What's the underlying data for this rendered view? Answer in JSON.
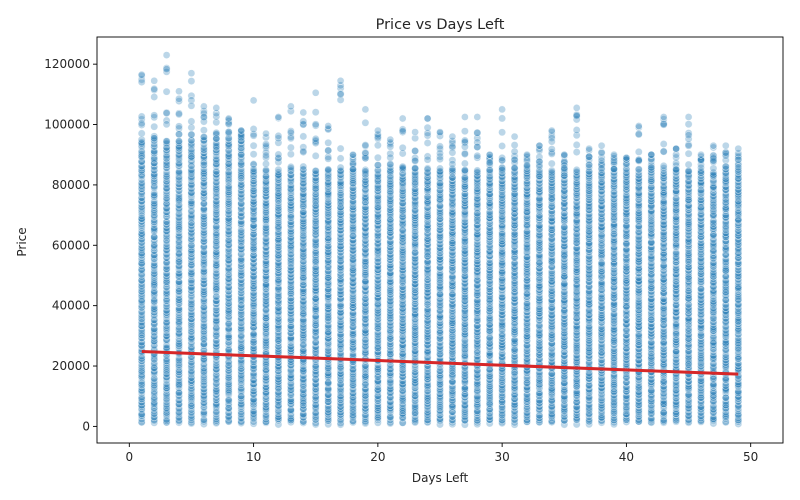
{
  "chart_data": {
    "type": "scatter",
    "title": "Price vs Days Left",
    "xlabel": "Days Left",
    "ylabel": "Price",
    "xlim": [
      -2.6,
      52.6
    ],
    "ylim": [
      -5500,
      129000
    ],
    "xticks": [
      0,
      10,
      20,
      30,
      40,
      50
    ],
    "yticks": [
      0,
      20000,
      40000,
      60000,
      80000,
      100000,
      120000
    ],
    "grid": false,
    "legend": "none",
    "colors": {
      "points": "#1f77b4",
      "trend": "#d62728",
      "axes": "#000000"
    },
    "scatter_summary": {
      "days_left_range": [
        1,
        49
      ],
      "days_left_values": [
        1,
        2,
        3,
        4,
        5,
        6,
        7,
        8,
        9,
        10,
        11,
        12,
        13,
        14,
        15,
        16,
        17,
        18,
        19,
        20,
        21,
        22,
        23,
        24,
        25,
        26,
        27,
        28,
        29,
        30,
        31,
        32,
        33,
        34,
        35,
        36,
        37,
        38,
        39,
        40,
        41,
        42,
        43,
        44,
        45,
        46,
        47,
        48,
        49
      ],
      "max_price_by_day": [
        116500,
        114500,
        123000,
        111000,
        117000,
        106000,
        105500,
        102000,
        98000,
        108000,
        97000,
        102500,
        106000,
        104000,
        110500,
        99500,
        114500,
        90000,
        105000,
        98000,
        95000,
        102000,
        97500,
        102000,
        97500,
        96000,
        102500,
        102500,
        90000,
        105000,
        96000,
        90000,
        93000,
        98000,
        90000,
        105500,
        92000,
        93000,
        90000,
        89000,
        99500,
        90000,
        102500,
        92000,
        102500,
        90000,
        93000,
        93000,
        92000
      ],
      "min_price": 1100
    },
    "trend_line": {
      "x": [
        1,
        49
      ],
      "y": [
        24800,
        17300
      ]
    }
  }
}
